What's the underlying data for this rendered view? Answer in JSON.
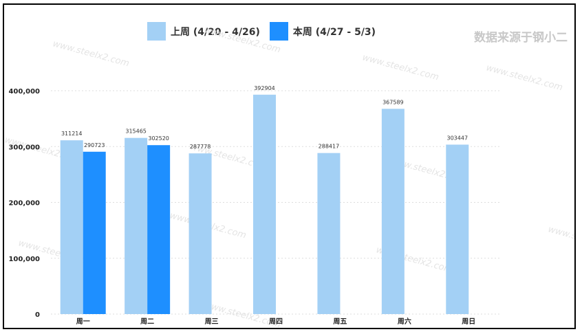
{
  "source_note": "数据来源于钢小二",
  "watermark_text": "www.steelx2.com",
  "colors": {
    "last_week": "#a3d0f5",
    "this_week": "#1e8fff",
    "grid": "#dddddd"
  },
  "chart_data": {
    "type": "bar",
    "categories": [
      "周一",
      "周二",
      "周三",
      "周四",
      "周五",
      "周六",
      "周日"
    ],
    "series": [
      {
        "name": "上周 (4/20 - 4/26)",
        "values": [
          311214,
          315465,
          287778,
          392904,
          288417,
          367589,
          303447
        ]
      },
      {
        "name": "本周 (4/27 - 5/3)",
        "values": [
          290723,
          302520,
          null,
          null,
          null,
          null,
          null
        ]
      }
    ],
    "yticks": [
      "0",
      "100,000",
      "200,000",
      "300,000",
      "400,000"
    ],
    "ylim": [
      0,
      400000
    ],
    "grid": true,
    "legend_position": "top"
  }
}
